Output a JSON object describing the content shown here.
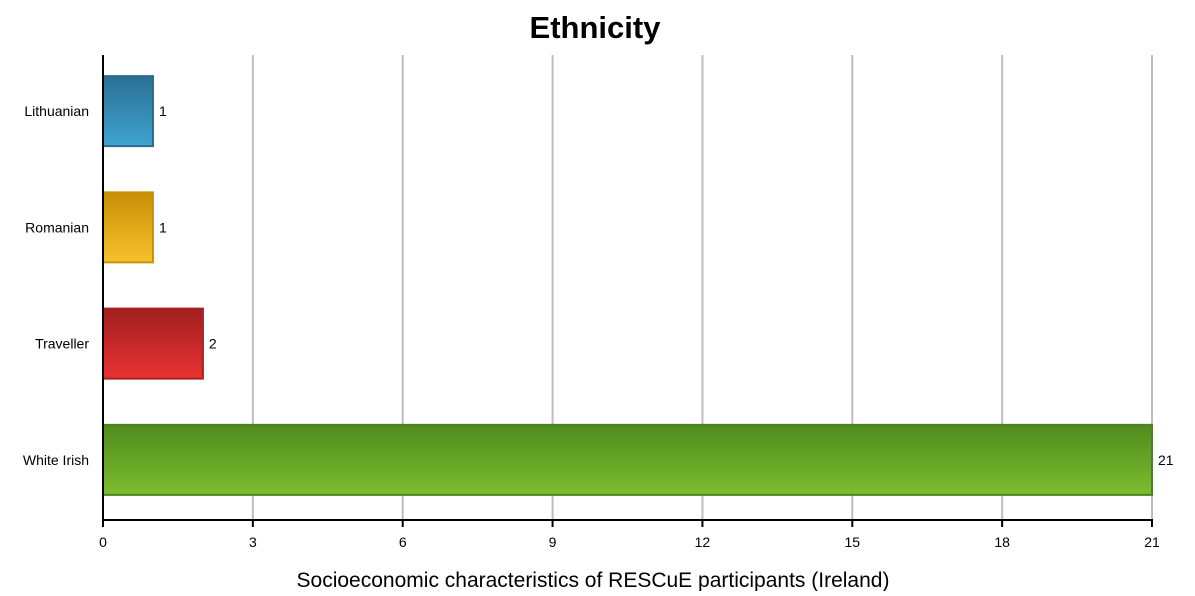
{
  "chart_data": {
    "type": "bar",
    "orientation": "horizontal",
    "title": "Ethnicity",
    "xlabel": "Socioeconomic characteristics of RESCuE participants (Ireland)",
    "ylabel": "",
    "categories": [
      "Lithuanian",
      "Romanian",
      "Traveller",
      "White Irish"
    ],
    "values": [
      1,
      1,
      2,
      21
    ],
    "data_labels": [
      "1",
      "1",
      "2",
      "21"
    ],
    "xlim": [
      0,
      21
    ],
    "x_ticks": [
      0,
      3,
      6,
      9,
      12,
      15,
      18,
      21
    ],
    "x_tick_labels": [
      "0",
      "3",
      "6",
      "9",
      "12",
      "15",
      "18",
      "21"
    ],
    "grid": "vertical",
    "legend": "none",
    "bar_colors": [
      {
        "category": "Lithuanian",
        "top": "#2a6f93",
        "bottom": "#3fa3d1",
        "border": "#2b6a8c"
      },
      {
        "category": "Romanian",
        "top": "#c98f06",
        "bottom": "#f7c12b",
        "border": "#c39212"
      },
      {
        "category": "Traveller",
        "top": "#a31f1f",
        "bottom": "#e93131",
        "border": "#a82222"
      },
      {
        "category": "White Irish",
        "top": "#4f8c1e",
        "bottom": "#7dbd2e",
        "border": "#4c8220"
      }
    ]
  }
}
